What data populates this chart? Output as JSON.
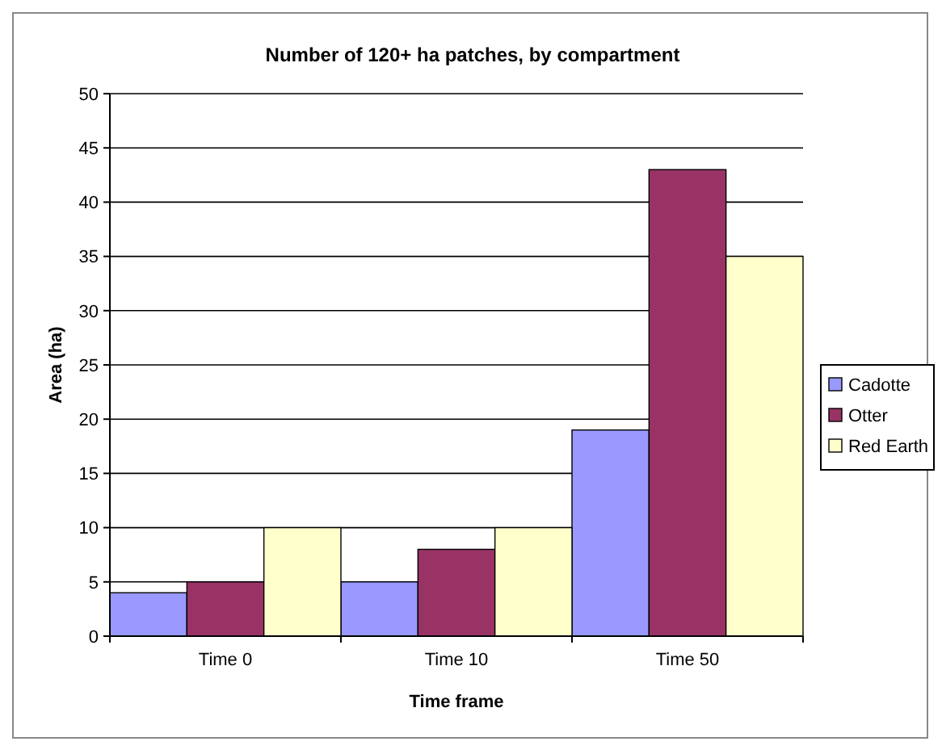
{
  "chart_data": {
    "type": "bar",
    "title": "Number of 120+ ha patches, by compartment",
    "xlabel": "Time frame",
    "ylabel": "Area (ha)",
    "categories": [
      "Time 0",
      "Time 10",
      "Time 50"
    ],
    "series": [
      {
        "name": "Cadotte",
        "color": "#9999ff",
        "values": [
          4,
          5,
          19
        ]
      },
      {
        "name": "Otter",
        "color": "#993366",
        "values": [
          5,
          8,
          43
        ]
      },
      {
        "name": "Red Earth",
        "color": "#ffffcc",
        "values": [
          10,
          10,
          35
        ]
      }
    ],
    "ylim": [
      0,
      50
    ],
    "yticks": [
      0,
      5,
      10,
      15,
      20,
      25,
      30,
      35,
      40,
      45,
      50
    ],
    "grid": "y",
    "legend": "right"
  }
}
